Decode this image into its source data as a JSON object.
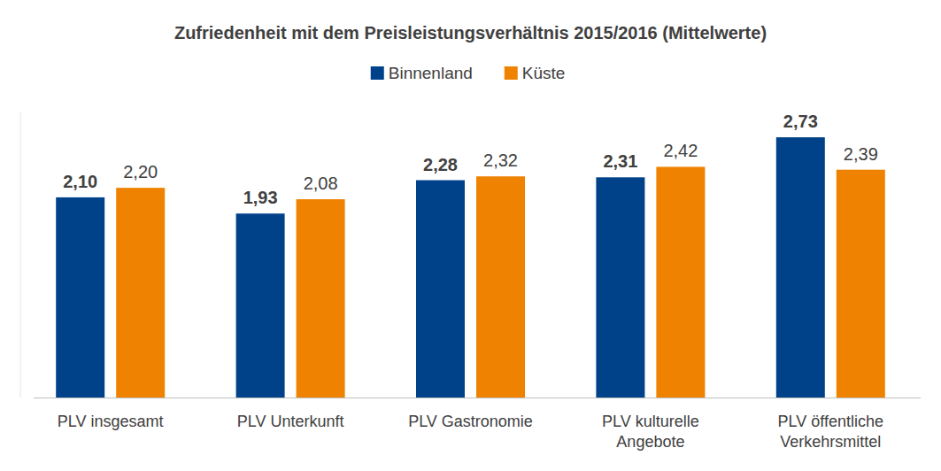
{
  "chart_data": {
    "type": "bar",
    "title": "Zufriedenheit mit dem Preisleistungsverhältnis 2015/2016 (Mittelwerte)",
    "categories": [
      "PLV insgesamt",
      "PLV Unterkunft",
      "PLV Gastronomie",
      "PLV kulturelle Angebote",
      "PLV öffentliche Verkehrsmittel"
    ],
    "series": [
      {
        "name": "Binnenland",
        "color": "#00428a",
        "values": [
          2.1,
          1.93,
          2.28,
          2.31,
          2.73
        ],
        "value_labels": [
          "2,10",
          "1,93",
          "2,28",
          "2,31",
          "2,73"
        ]
      },
      {
        "name": "Küste",
        "color": "#ef8200",
        "values": [
          2.2,
          2.08,
          2.32,
          2.42,
          2.39
        ],
        "value_labels": [
          "2,20",
          "2,08",
          "2,32",
          "2,42",
          "2,39"
        ]
      }
    ],
    "ylim": [
      0,
      3
    ],
    "yticks": [],
    "grid": false,
    "legend": "top",
    "data_labels": true,
    "tick_labels": "x"
  }
}
